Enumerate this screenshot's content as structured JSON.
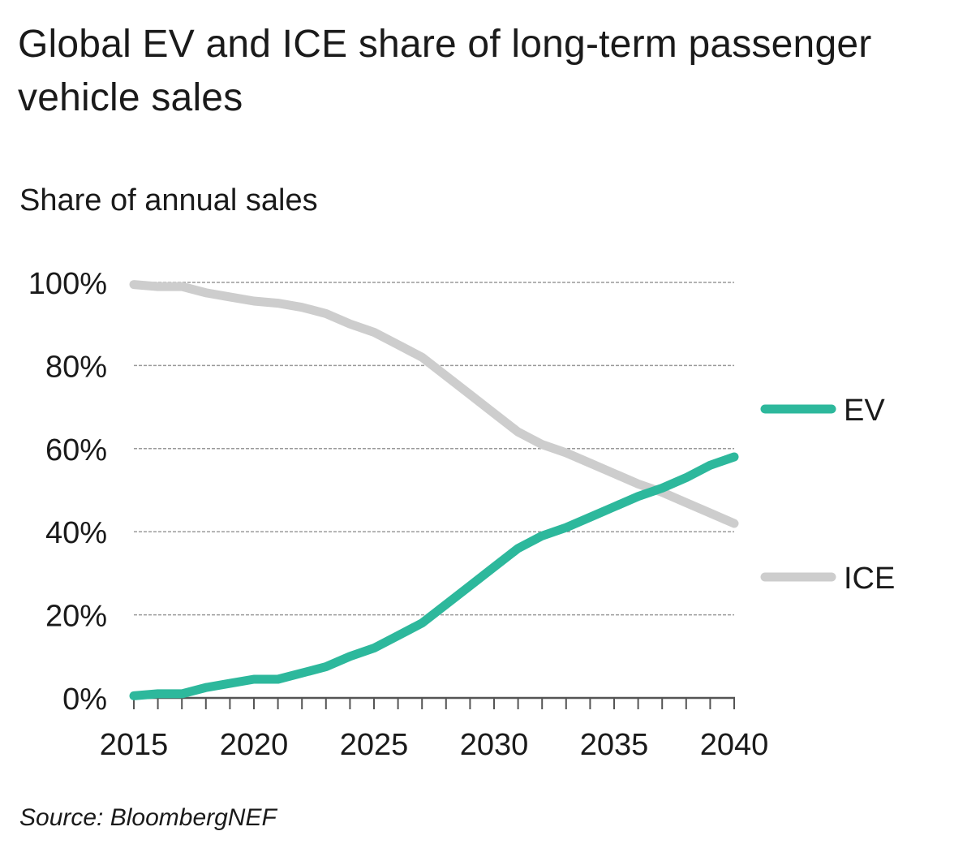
{
  "title": "Global EV and ICE share of long-term passenger vehicle sales",
  "source": "Source: BloombergNEF",
  "colors": {
    "ev": "#2db89c",
    "ice": "#cdcdcd",
    "grid": "#9a9a9a",
    "axis": "#555555"
  },
  "chart_data": {
    "type": "line",
    "ylabel": "Share of annual sales",
    "xlim": [
      2015,
      2040
    ],
    "ylim": [
      0,
      100
    ],
    "x_ticks": [
      2015,
      2020,
      2025,
      2030,
      2035,
      2040
    ],
    "y_ticks": [
      0,
      20,
      40,
      60,
      80,
      100
    ],
    "y_tick_labels": [
      "0%",
      "20%",
      "40%",
      "60%",
      "80%",
      "100%"
    ],
    "grid": "horizontal dashed",
    "legend_position": "right",
    "x": [
      2015,
      2016,
      2017,
      2018,
      2019,
      2020,
      2021,
      2022,
      2023,
      2024,
      2025,
      2026,
      2027,
      2028,
      2029,
      2030,
      2031,
      2032,
      2033,
      2034,
      2035,
      2036,
      2037,
      2038,
      2039,
      2040
    ],
    "series": [
      {
        "name": "EV",
        "values": [
          0.5,
          1,
          1,
          2.5,
          3.5,
          4.5,
          4.5,
          6,
          7.5,
          10,
          12,
          15,
          18,
          22.5,
          27,
          31.5,
          36,
          39,
          41,
          43.5,
          46,
          48.5,
          50.5,
          53,
          56,
          58
        ]
      },
      {
        "name": "ICE",
        "values": [
          99.5,
          99,
          99,
          97.5,
          96.5,
          95.5,
          95,
          94,
          92.5,
          90,
          88,
          85,
          82,
          77.5,
          73,
          68.5,
          64,
          61,
          59,
          56.5,
          54,
          51.5,
          49.5,
          47,
          44.5,
          42
        ]
      }
    ]
  }
}
